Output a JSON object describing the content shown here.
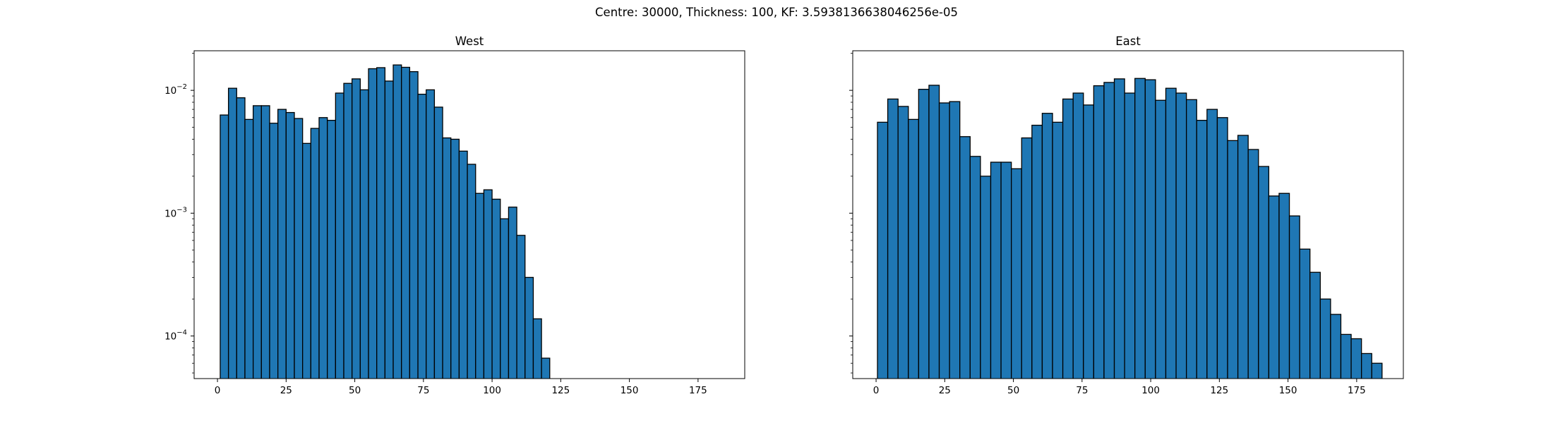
{
  "figure": {
    "suptitle": "Centre: 30000, Thickness: 100, KF: 3.5938136638046256e-05"
  },
  "chart_data": [
    {
      "type": "bar",
      "title": "West",
      "xlabel": "",
      "ylabel": "",
      "xlim": [
        -8.5,
        192
      ],
      "ylim": [
        4.5e-05,
        0.021
      ],
      "yscale": "log",
      "xticks": [
        0,
        25,
        50,
        75,
        100,
        125,
        150,
        175
      ],
      "yticks": [
        {
          "value": 0.0001,
          "mantissa": "10",
          "exponent": "−4"
        },
        {
          "value": 0.001,
          "mantissa": "10",
          "exponent": "−3"
        },
        {
          "value": 0.01,
          "mantissa": "10",
          "exponent": "−2"
        }
      ],
      "bin_start": 1,
      "bin_width": 3.0,
      "bar_color": "#1f77b4",
      "edge_color": "#000000",
      "values": [
        0.0063,
        0.0104,
        0.0087,
        0.0058,
        0.0075,
        0.0075,
        0.0054,
        0.007,
        0.0066,
        0.0059,
        0.0037,
        0.0049,
        0.006,
        0.0057,
        0.0095,
        0.0114,
        0.0124,
        0.0101,
        0.015,
        0.0153,
        0.0119,
        0.0161,
        0.0154,
        0.0142,
        0.0093,
        0.0101,
        0.0073,
        0.0041,
        0.004,
        0.0032,
        0.0025,
        0.00145,
        0.00155,
        0.0013,
        0.0009,
        0.00112,
        0.00066,
        0.0003,
        0.000138,
        6.6e-05
      ]
    },
    {
      "type": "bar",
      "title": "East",
      "xlabel": "",
      "ylabel": "",
      "xlim": [
        -8.5,
        192
      ],
      "ylim": [
        4.5e-05,
        0.021
      ],
      "yscale": "log",
      "xticks": [
        0,
        25,
        50,
        75,
        100,
        125,
        150,
        175
      ],
      "yticks": [
        {
          "value": 0.0001,
          "mantissa": "",
          "exponent": ""
        },
        {
          "value": 0.001,
          "mantissa": "",
          "exponent": ""
        },
        {
          "value": 0.01,
          "mantissa": "",
          "exponent": ""
        }
      ],
      "bin_start": 0.5,
      "bin_width": 3.75,
      "bar_color": "#1f77b4",
      "edge_color": "#000000",
      "values": [
        0.0055,
        0.0085,
        0.0074,
        0.0058,
        0.0102,
        0.011,
        0.0079,
        0.0081,
        0.0042,
        0.0029,
        0.002,
        0.0026,
        0.0026,
        0.0023,
        0.0041,
        0.0052,
        0.0065,
        0.0055,
        0.0085,
        0.0095,
        0.0076,
        0.0109,
        0.0116,
        0.0124,
        0.0095,
        0.0125,
        0.0122,
        0.0083,
        0.0104,
        0.0095,
        0.0084,
        0.0057,
        0.007,
        0.006,
        0.0039,
        0.0043,
        0.0033,
        0.0024,
        0.00138,
        0.00145,
        0.00095,
        0.00051,
        0.00033,
        0.0002,
        0.00015,
        0.000103,
        9.5e-05,
        7.2e-05,
        6e-05
      ]
    }
  ]
}
